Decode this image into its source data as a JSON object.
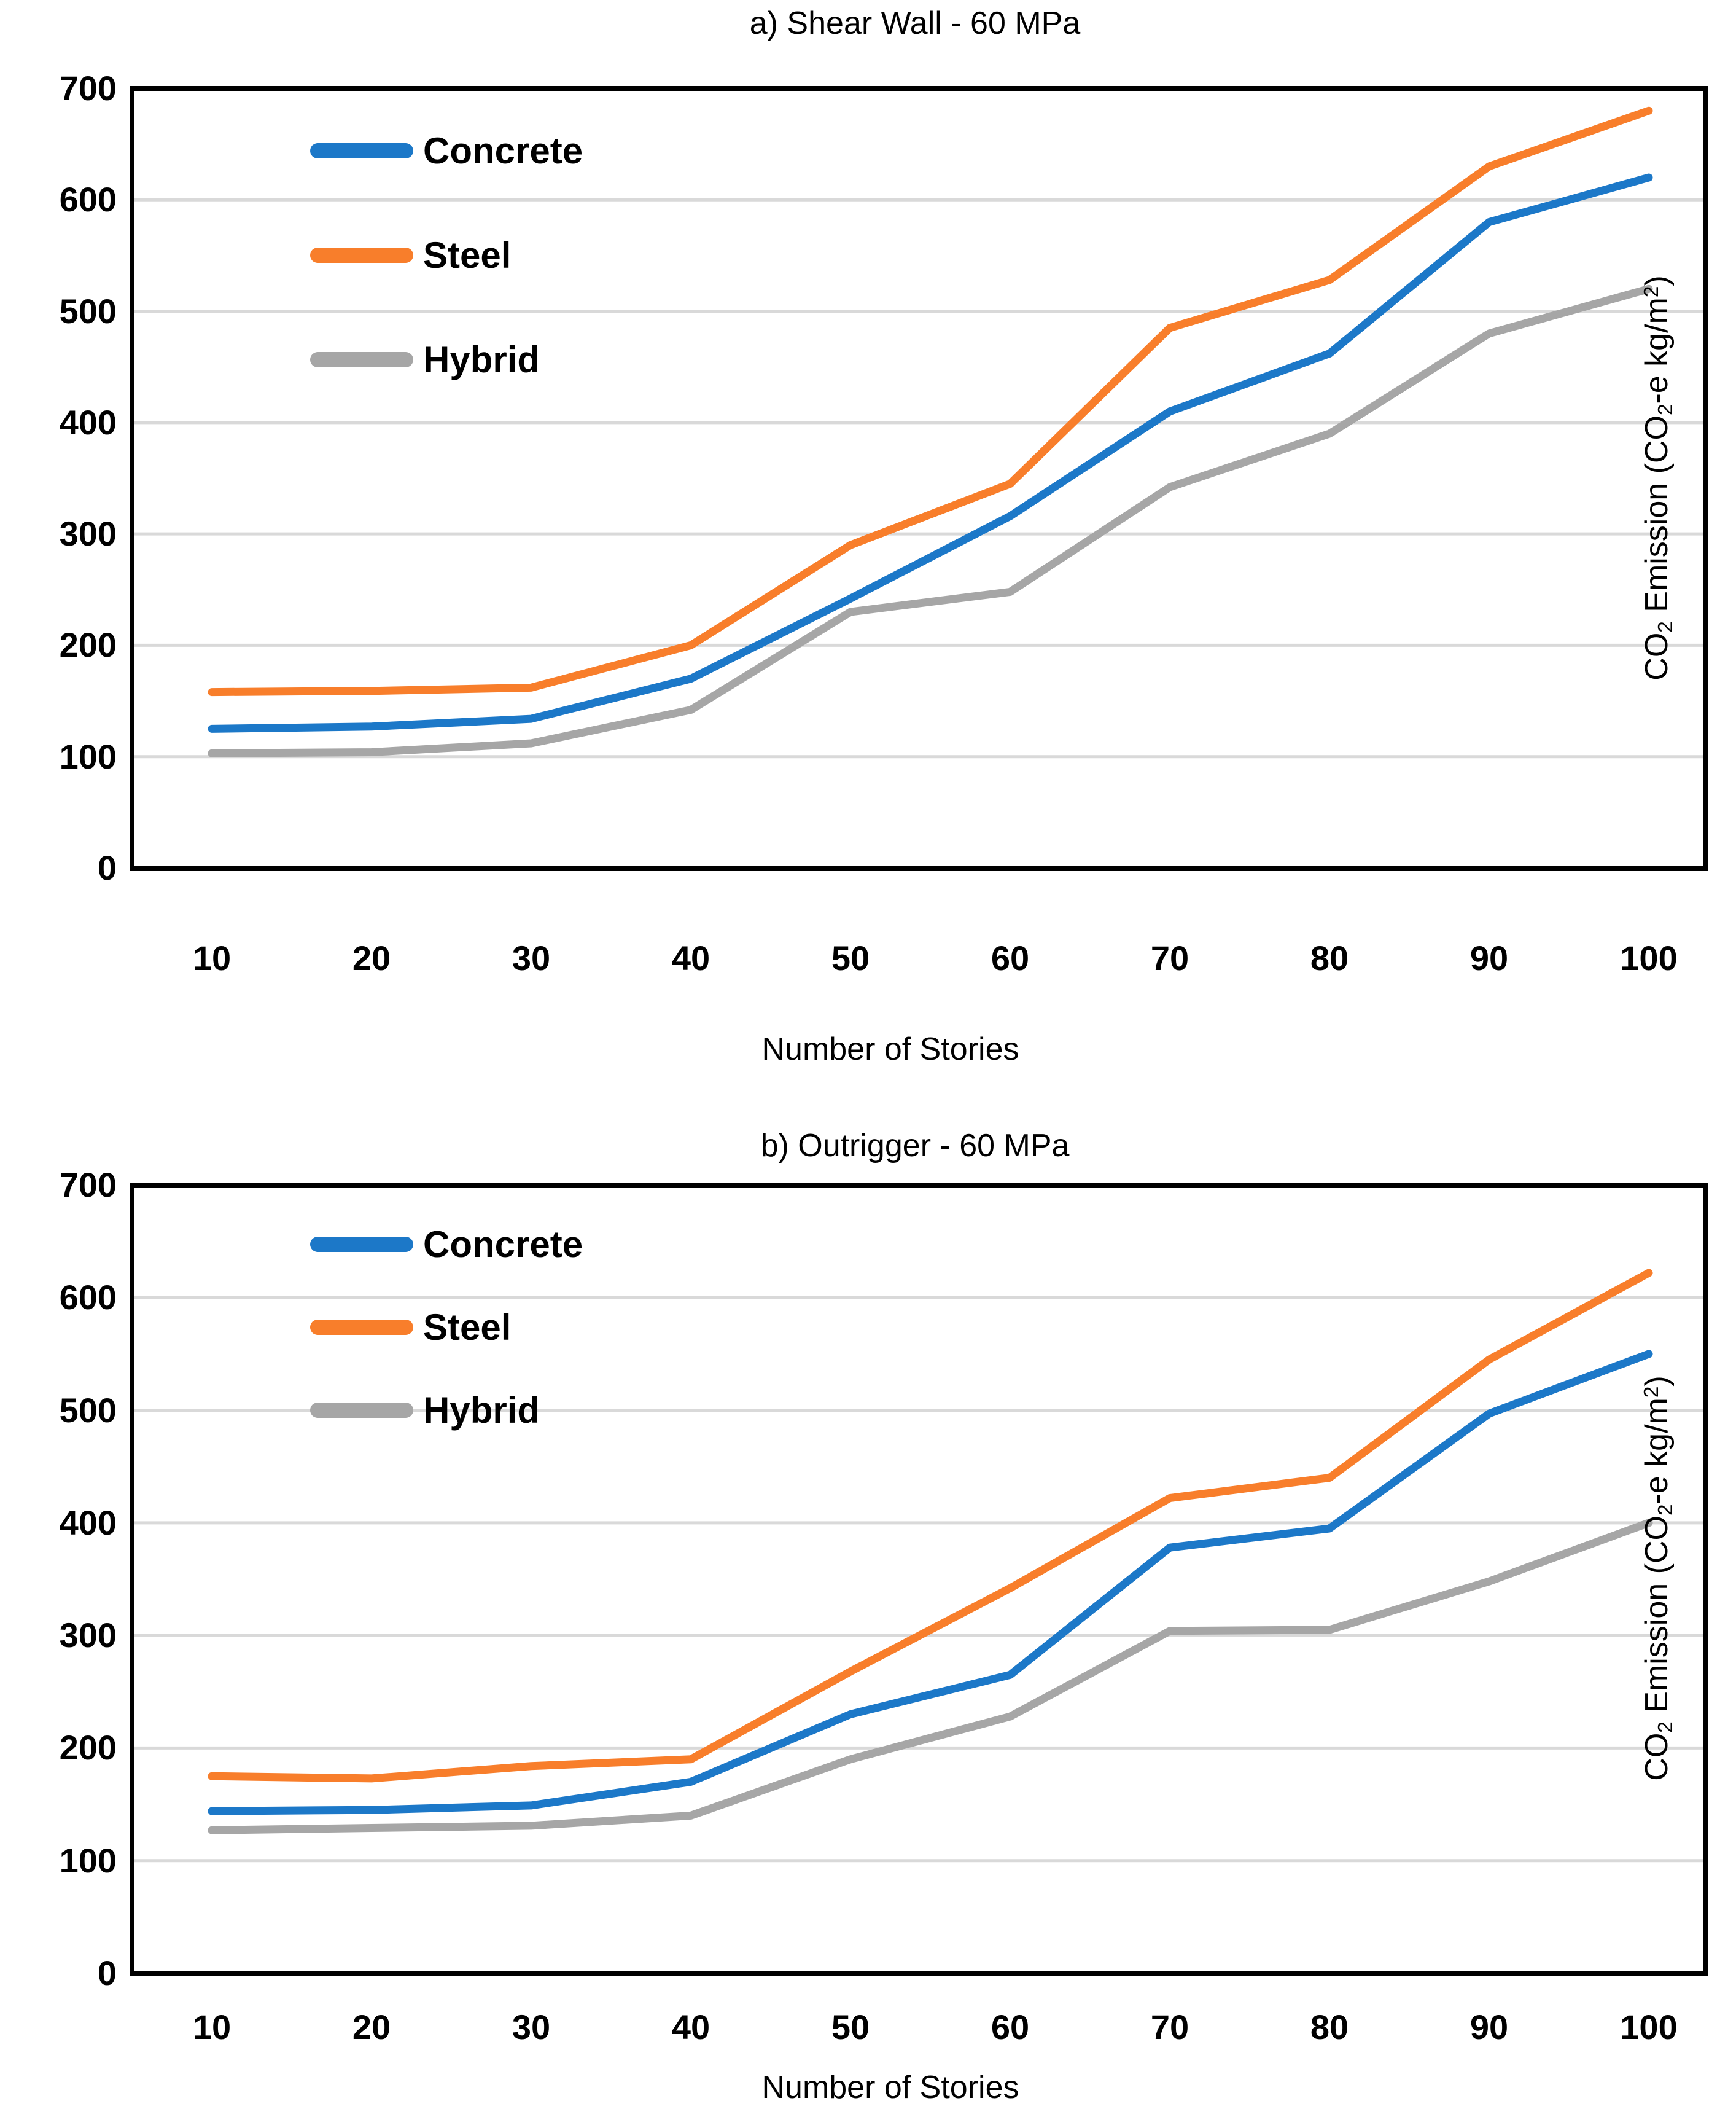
{
  "chart_data": [
    {
      "type": "line",
      "title": "a) Shear Wall - 60 MPa",
      "xlabel": "Number of Stories",
      "ylabel": "CO2 Emission (CO2-e kg/m2)",
      "ylabel_parts": {
        "p1": "CO",
        "s1": "2",
        "p2": " Emission (CO",
        "s2": "2",
        "p3": "-e kg/m",
        "sup1": "2",
        "p4": ")"
      },
      "categories": [
        "10",
        "20",
        "30",
        "40",
        "50",
        "60",
        "70",
        "80",
        "90",
        "100"
      ],
      "y_ticks": [
        "0",
        "100",
        "200",
        "300",
        "400",
        "500",
        "600",
        "700"
      ],
      "ylim": [
        0,
        700
      ],
      "grid": true,
      "legend_position": "inside-top-left",
      "series": [
        {
          "name": "Concrete",
          "color": "#1C78C8",
          "values": [
            125,
            127,
            134,
            170,
            242,
            316,
            410,
            462,
            580,
            620
          ]
        },
        {
          "name": "Steel",
          "color": "#F87E2B",
          "values": [
            158,
            159,
            162,
            200,
            290,
            345,
            485,
            528,
            630,
            680
          ]
        },
        {
          "name": "Hybrid",
          "color": "#A6A6A6",
          "values": [
            103,
            104,
            112,
            142,
            230,
            248,
            342,
            390,
            480,
            520
          ]
        }
      ]
    },
    {
      "type": "line",
      "title": "b) Outrigger - 60 MPa",
      "xlabel": "Number of Stories",
      "ylabel": "CO2 Emission (CO2-e kg/m2)",
      "ylabel_parts": {
        "p1": "CO",
        "s1": "2",
        "p2": " Emission (CO",
        "s2": "2",
        "p3": "-e kg/m",
        "sup1": "2",
        "p4": ")"
      },
      "categories": [
        "10",
        "20",
        "30",
        "40",
        "50",
        "60",
        "70",
        "80",
        "90",
        "100"
      ],
      "y_ticks": [
        "0",
        "100",
        "200",
        "300",
        "400",
        "500",
        "600",
        "700"
      ],
      "ylim": [
        0,
        700
      ],
      "grid": true,
      "legend_position": "inside-top-left",
      "series": [
        {
          "name": "Concrete",
          "color": "#1C78C8",
          "values": [
            144,
            145,
            149,
            170,
            230,
            265,
            378,
            395,
            497,
            550
          ]
        },
        {
          "name": "Steel",
          "color": "#F87E2B",
          "values": [
            175,
            173,
            184,
            190,
            268,
            342,
            422,
            440,
            545,
            622
          ]
        },
        {
          "name": "Hybrid",
          "color": "#A6A6A6",
          "values": [
            127,
            129,
            131,
            140,
            190,
            228,
            304,
            305,
            348,
            400
          ]
        }
      ]
    }
  ],
  "style": {
    "grid_color": "#D9D9D9",
    "frame_color": "#000000",
    "background": "#FFFFFF"
  }
}
